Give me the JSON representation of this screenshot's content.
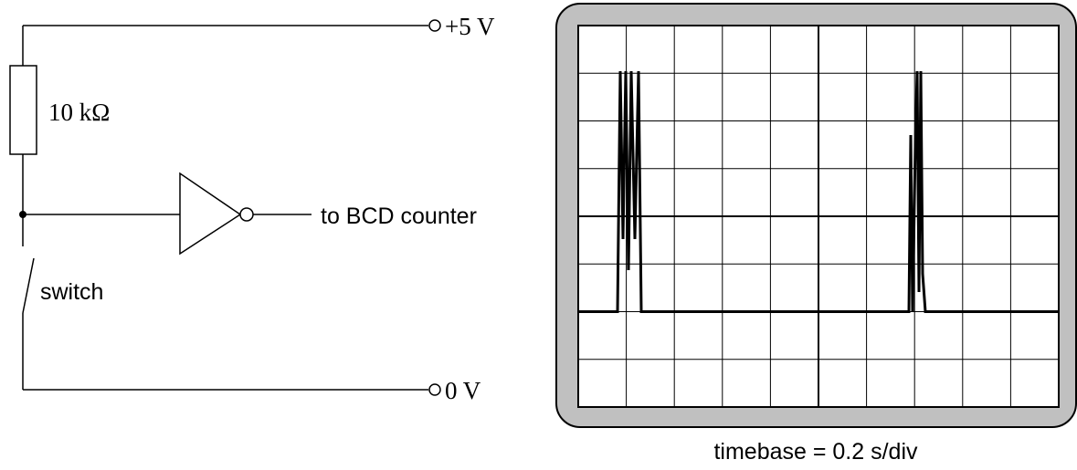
{
  "circuit": {
    "supply_label": "+5 V",
    "resistor_label": "10 kΩ",
    "output_label": "to BCD counter",
    "switch_label": "switch",
    "ground_label": "0 V"
  },
  "oscilloscope": {
    "timebase_label": "timebase = 0.2 s/div"
  }
}
